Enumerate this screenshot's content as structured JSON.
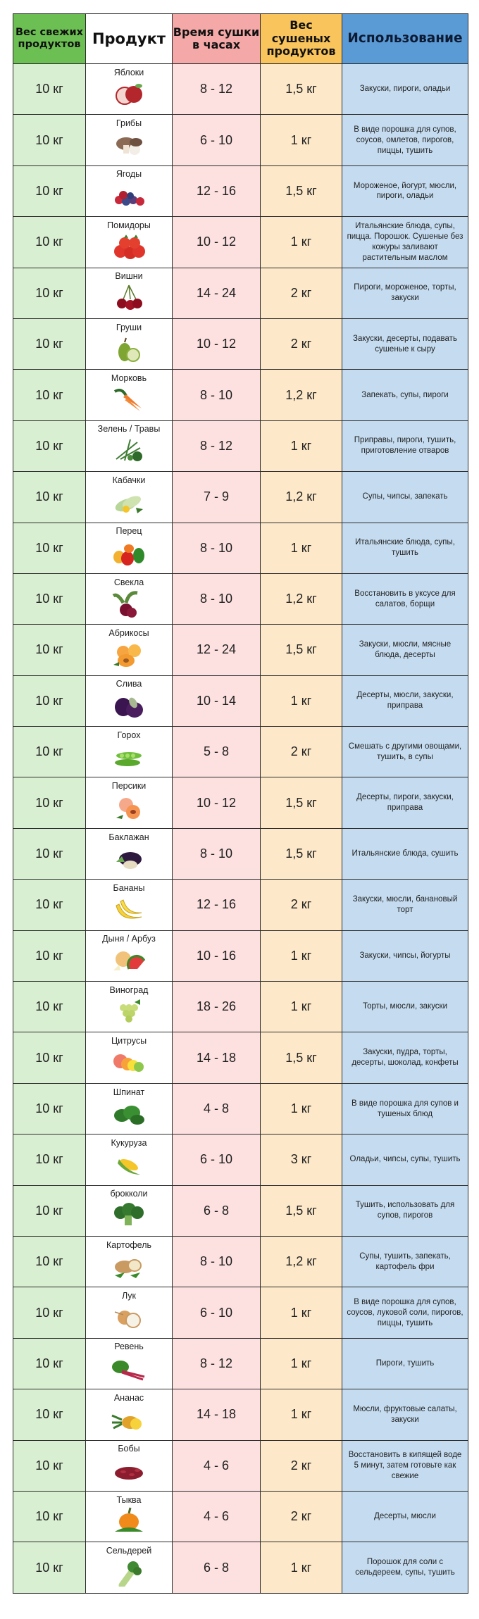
{
  "header": {
    "fresh_weight": "Вес свежих продуктов",
    "product": "Продукт",
    "drying_time": "Время сушки в часах",
    "dried_weight": "Вес сушеных продуктов",
    "usage": "Использование"
  },
  "colors": {
    "green_header": "#6cbf52",
    "green_cell": "#d9efd2",
    "pink_header": "#f4a8a7",
    "pink_cell": "#fde0e0",
    "yellow_header": "#f8c45b",
    "yellow_cell": "#fde9c9",
    "blue_header": "#5b9bd5",
    "blue_cell": "#c5dcf0"
  },
  "rows": [
    {
      "fresh": "10 кг",
      "product": "Яблоки",
      "icon": "apple-icon",
      "time": "8 - 12",
      "dry": "1,5 кг",
      "usage": "Закуски, пироги, оладьи"
    },
    {
      "fresh": "10 кг",
      "product": "Грибы",
      "icon": "mushroom-icon",
      "time": "6 - 10",
      "dry": "1 кг",
      "usage": "В виде порошка для супов, соусов, омлетов, пирогов, пиццы, тушить"
    },
    {
      "fresh": "10 кг",
      "product": "Ягоды",
      "icon": "berries-icon",
      "time": "12 - 16",
      "dry": "1,5 кг",
      "usage": "Мороженое, йогурт, мюсли, пироги, оладьи"
    },
    {
      "fresh": "10 кг",
      "product": "Помидоры",
      "icon": "tomato-icon",
      "time": "10 - 12",
      "dry": "1 кг",
      "usage": "Итальянские блюда, супы, пицца. Порошок. Сушеные без кожуры заливают растительным маслом"
    },
    {
      "fresh": "10 кг",
      "product": "Вишни",
      "icon": "cherry-icon",
      "time": "14 - 24",
      "dry": "2 кг",
      "usage": "Пироги, мороженое, торты, закуски"
    },
    {
      "fresh": "10 кг",
      "product": "Груши",
      "icon": "pear-icon",
      "time": "10 - 12",
      "dry": "2 кг",
      "usage": "Закуски, десерты, подавать сушеные к сыру"
    },
    {
      "fresh": "10 кг",
      "product": "Морковь",
      "icon": "carrot-icon",
      "time": "8 - 10",
      "dry": "1,2 кг",
      "usage": "Запекать, супы, пироги"
    },
    {
      "fresh": "10 кг",
      "product": "Зелень / Травы",
      "icon": "herbs-icon",
      "time": "8 - 12",
      "dry": "1 кг",
      "usage": "Приправы, пироги, тушить, приготовление отваров"
    },
    {
      "fresh": "10 кг",
      "product": "Кабачки",
      "icon": "zucchini-icon",
      "time": "7 - 9",
      "dry": "1,2 кг",
      "usage": "Супы, чипсы, запекать"
    },
    {
      "fresh": "10 кг",
      "product": "Перец",
      "icon": "pepper-icon",
      "time": "8 - 10",
      "dry": "1 кг",
      "usage": "Итальянские блюда, супы, тушить"
    },
    {
      "fresh": "10 кг",
      "product": "Свекла",
      "icon": "beet-icon",
      "time": "8 - 10",
      "dry": "1,2 кг",
      "usage": "Восстановить в уксусе для салатов, борщи"
    },
    {
      "fresh": "10 кг",
      "product": "Абрикосы",
      "icon": "apricot-icon",
      "time": "12 - 24",
      "dry": "1,5 кг",
      "usage": "Закуски, мюсли, мясные блюда, десерты"
    },
    {
      "fresh": "10 кг",
      "product": "Слива",
      "icon": "plum-icon",
      "time": "10 - 14",
      "dry": "1 кг",
      "usage": "Десерты, мюсли, закуски, приправа"
    },
    {
      "fresh": "10 кг",
      "product": "Горох",
      "icon": "peas-icon",
      "time": "5 - 8",
      "dry": "2 кг",
      "usage": "Смешать с другими овощами, тушить, в супы"
    },
    {
      "fresh": "10 кг",
      "product": "Персики",
      "icon": "peach-icon",
      "time": "10 - 12",
      "dry": "1,5 кг",
      "usage": "Десерты, пироги, закуски, приправа"
    },
    {
      "fresh": "10 кг",
      "product": "Баклажан",
      "icon": "eggplant-icon",
      "time": "8 - 10",
      "dry": "1,5 кг",
      "usage": "Итальянские блюда, сушить"
    },
    {
      "fresh": "10 кг",
      "product": "Бананы",
      "icon": "banana-icon",
      "time": "12 - 16",
      "dry": "2 кг",
      "usage": "Закуски, мюсли, банановый торт"
    },
    {
      "fresh": "10 кг",
      "product": "Дыня / Арбуз",
      "icon": "melon-icon",
      "time": "10 - 16",
      "dry": "1 кг",
      "usage": "Закуски, чипсы, йогурты"
    },
    {
      "fresh": "10 кг",
      "product": "Виноград",
      "icon": "grapes-icon",
      "time": "18 - 26",
      "dry": "1 кг",
      "usage": "Торты, мюсли, закуски"
    },
    {
      "fresh": "10 кг",
      "product": "Цитрусы",
      "icon": "citrus-icon",
      "time": "14 - 18",
      "dry": "1,5 кг",
      "usage": "Закуски, пудра, торты, десерты, шоколад, конфеты"
    },
    {
      "fresh": "10 кг",
      "product": "Шпинат",
      "icon": "spinach-icon",
      "time": "4 - 8",
      "dry": "1 кг",
      "usage": "В виде порошка для супов и тушеных блюд"
    },
    {
      "fresh": "10 кг",
      "product": "Кукуруза",
      "icon": "corn-icon",
      "time": "6 - 10",
      "dry": "3 кг",
      "usage": "Оладьи, чипсы, супы, тушить"
    },
    {
      "fresh": "10 кг",
      "product": "брокколи",
      "icon": "broccoli-icon",
      "time": "6 - 8",
      "dry": "1,5 кг",
      "usage": "Тушить, использовать для супов, пирогов"
    },
    {
      "fresh": "10 кг",
      "product": "Картофель",
      "icon": "potato-icon",
      "time": "8 - 10",
      "dry": "1,2 кг",
      "usage": "Супы, тушить, запекать, картофель фри"
    },
    {
      "fresh": "10 кг",
      "product": "Лук",
      "icon": "onion-icon",
      "time": "6 - 10",
      "dry": "1 кг",
      "usage": "В виде порошка для супов, соусов, луковой соли, пирогов, пиццы, тушить"
    },
    {
      "fresh": "10 кг",
      "product": "Ревень",
      "icon": "rhubarb-icon",
      "time": "8 - 12",
      "dry": "1 кг",
      "usage": "Пироги, тушить"
    },
    {
      "fresh": "10 кг",
      "product": "Ананас",
      "icon": "pineapple-icon",
      "time": "14 - 18",
      "dry": "1 кг",
      "usage": "Мюсли, фруктовые салаты, закуски"
    },
    {
      "fresh": "10 кг",
      "product": "Бобы",
      "icon": "beans-icon",
      "time": "4 - 6",
      "dry": "2 кг",
      "usage": "Восстановить в кипящей воде 5 минут, затем готовьте как свежие"
    },
    {
      "fresh": "10 кг",
      "product": "Тыква",
      "icon": "pumpkin-icon",
      "time": "4 - 6",
      "dry": "2 кг",
      "usage": "Десерты, мюсли"
    },
    {
      "fresh": "10 кг",
      "product": "Сельдерей",
      "icon": "celery-icon",
      "time": "6 - 8",
      "dry": "1 кг",
      "usage": "Порошок для соли с сельдереем, супы, тушить"
    }
  ]
}
